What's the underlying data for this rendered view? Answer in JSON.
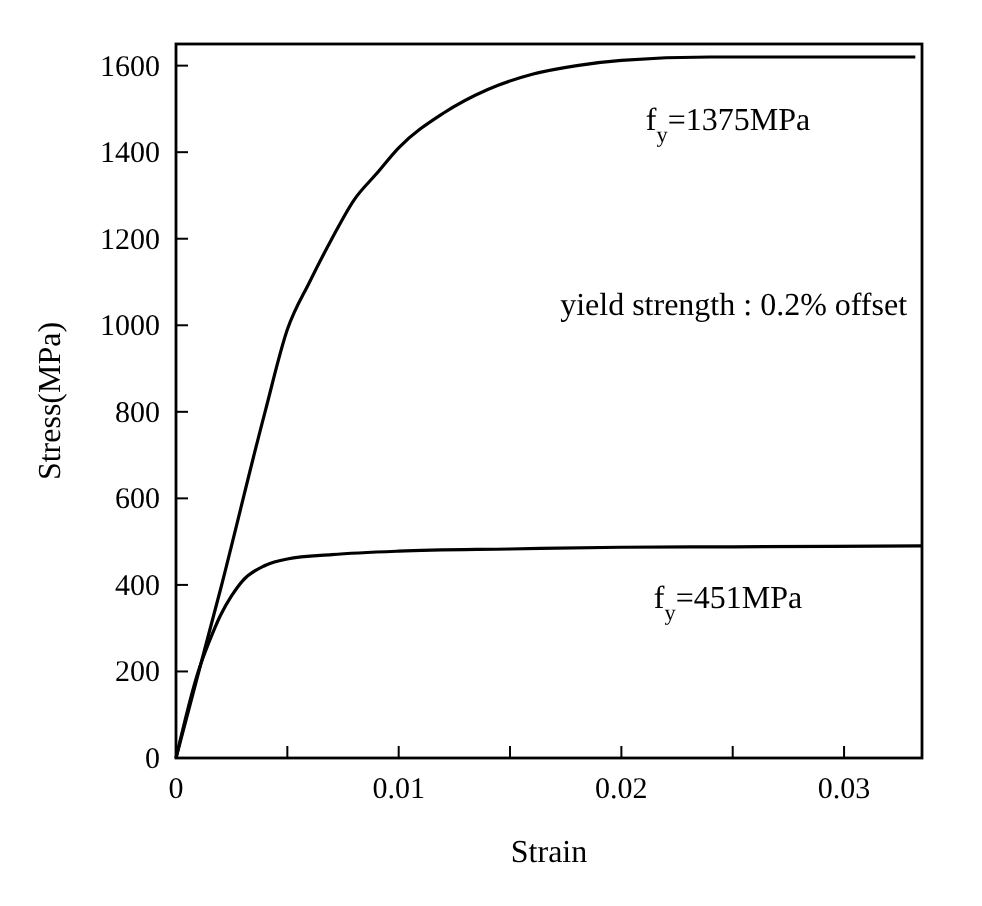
{
  "chart_data": {
    "type": "line",
    "xlabel": "Strain",
    "ylabel": "Stress(MPa)",
    "xlim": [
      0,
      0.0335
    ],
    "ylim": [
      0,
      1650
    ],
    "xticks": [
      0,
      {
        "value": 0.005,
        "label": null
      },
      0.01,
      {
        "value": 0.015,
        "label": null
      },
      0.02,
      {
        "value": 0.025,
        "label": null
      },
      0.03
    ],
    "yticks": [
      0,
      200,
      400,
      600,
      800,
      1000,
      1200,
      1400,
      1600
    ],
    "grid": false,
    "marker": "none",
    "line_style": "solid",
    "series": [
      {
        "color": "#000000",
        "x": [
          0,
          0.002,
          0.004,
          0.005,
          0.006,
          0.007,
          0.008,
          0.009,
          0.01,
          0.012,
          0.014,
          0.016,
          0.018,
          0.02,
          0.024,
          0.0332
        ],
        "values": [
          0,
          390,
          800,
          990,
          1100,
          1200,
          1290,
          1350,
          1410,
          1490,
          1545,
          1580,
          1600,
          1612,
          1620,
          1620
        ]
      },
      {
        "color": "#000000",
        "x": [
          0,
          0.001,
          0.0015,
          0.002,
          0.0025,
          0.003,
          0.004,
          0.005,
          0.007,
          0.01,
          0.015,
          0.02,
          0.025,
          0.0335
        ],
        "values": [
          0,
          200,
          270,
          330,
          375,
          410,
          445,
          460,
          470,
          478,
          483,
          487,
          488,
          490
        ]
      }
    ],
    "annotations": [
      "f$_{y}$=1375MPa",
      "yield strength : 0.2% offset",
      "f$_{y}$=451MPa"
    ]
  }
}
